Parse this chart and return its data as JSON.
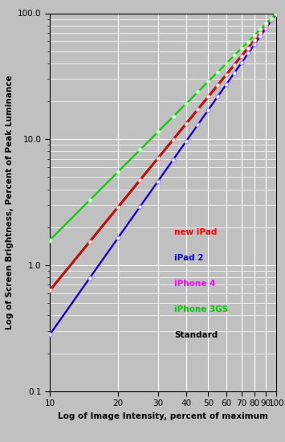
{
  "title": "",
  "xlabel": "Log of Image Intensity, percent of maximum",
  "ylabel": "Log of Screen Brightness, Percent of Peak Luminance",
  "xlim": [
    10,
    100
  ],
  "ylim": [
    0.1,
    100
  ],
  "background_color": "#c0c0c0",
  "series_params": {
    "new iPad": {
      "gamma": 2.2,
      "color": "#ff0000",
      "has_marker": true,
      "mcolor": "#ff8888",
      "lw": 1.5,
      "zorder": 5
    },
    "iPad 2": {
      "gamma": 2.55,
      "color": "#0000cc",
      "has_marker": true,
      "mcolor": "#8888ff",
      "lw": 1.5,
      "zorder": 4
    },
    "iPhone 4": {
      "gamma": 2.55,
      "color": "#ff00ff",
      "has_marker": true,
      "mcolor": "#ff88ff",
      "lw": 1.5,
      "zorder": 3
    },
    "iPhone 3GS": {
      "gamma": 1.8,
      "color": "#00cc00",
      "has_marker": true,
      "mcolor": "#88ff88",
      "lw": 1.5,
      "zorder": 6
    },
    "Standard": {
      "gamma": 2.2,
      "color": "#000000",
      "has_marker": false,
      "mcolor": null,
      "lw": 2.0,
      "zorder": 2
    }
  },
  "draw_order": [
    "Standard",
    "iPad 2",
    "iPhone 4",
    "new iPad",
    "iPhone 3GS"
  ],
  "legend_items": [
    [
      "new iPad",
      "#ff0000"
    ],
    [
      "iPad 2",
      "#0000cc"
    ],
    [
      "iPhone 4",
      "#ff00ff"
    ],
    [
      "iPhone 3GS",
      "#00cc00"
    ],
    [
      "Standard",
      "#000000"
    ]
  ],
  "marker_x": [
    10,
    15,
    20,
    25,
    30,
    35,
    40,
    45,
    50,
    55,
    60,
    65,
    70,
    75,
    80,
    85,
    90,
    95,
    100
  ]
}
